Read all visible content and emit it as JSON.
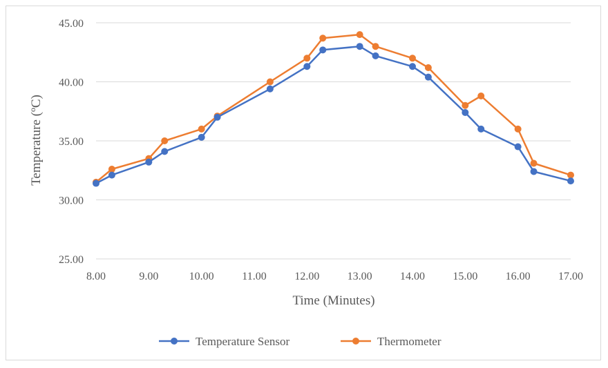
{
  "chart_data": {
    "type": "line",
    "title": "",
    "xlabel": "Time (Minutes)",
    "ylabel": "Temperature (ºC)",
    "xlim": [
      8,
      17
    ],
    "ylim": [
      25,
      45
    ],
    "x_ticks": [
      8,
      9,
      10,
      11,
      12,
      13,
      14,
      15,
      16,
      17
    ],
    "y_ticks": [
      25,
      30,
      35,
      40,
      45
    ],
    "x_tick_labels": [
      "8.00",
      "9.00",
      "10.00",
      "11.00",
      "12.00",
      "13.00",
      "14.00",
      "15.00",
      "16.00",
      "17.00"
    ],
    "y_tick_labels": [
      "25.00",
      "30.00",
      "35.00",
      "40.00",
      "45.00"
    ],
    "grid": "horizontal",
    "legend_position": "bottom",
    "series": [
      {
        "name": "Temperature Sensor",
        "color": "#4472C4",
        "x": [
          8.0,
          8.3,
          9.0,
          9.3,
          10.0,
          10.3,
          11.3,
          12.0,
          12.3,
          13.0,
          13.3,
          14.0,
          14.3,
          15.0,
          15.3,
          16.0,
          16.3,
          17.0
        ],
        "y": [
          31.4,
          32.1,
          33.2,
          34.1,
          35.3,
          37.0,
          39.4,
          41.3,
          42.7,
          43.0,
          42.2,
          41.3,
          40.4,
          37.4,
          36.0,
          34.5,
          32.4,
          31.6
        ]
      },
      {
        "name": "Thermometer",
        "color": "#ED7D31",
        "x": [
          8.0,
          8.3,
          9.0,
          9.3,
          10.0,
          10.3,
          11.3,
          12.0,
          12.3,
          13.0,
          13.3,
          14.0,
          14.3,
          15.0,
          15.3,
          16.0,
          16.3,
          17.0
        ],
        "y": [
          31.5,
          32.6,
          33.5,
          35.0,
          36.0,
          37.1,
          40.0,
          42.0,
          43.7,
          44.0,
          43.0,
          42.0,
          41.2,
          38.0,
          38.8,
          36.0,
          33.1,
          32.1
        ]
      }
    ]
  }
}
